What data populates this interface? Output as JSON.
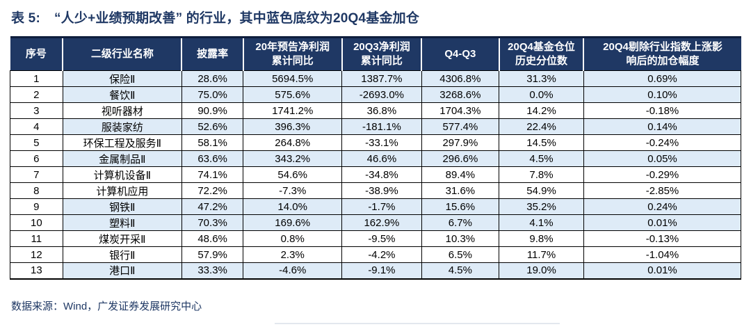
{
  "title": {
    "prefix": "表 5:",
    "text": "“人少+业绩预期改善” 的行业，其中蓝色底纹为20Q4基金加仓"
  },
  "colors": {
    "header_bg": "#1F3864",
    "header_text": "#FFFFFF",
    "highlight_row_bg": "#DEEBF7",
    "title_text": "#1F3864",
    "cell_border": "#000000"
  },
  "table": {
    "columns": [
      {
        "key": "index",
        "label": "序号",
        "width": 7.2
      },
      {
        "key": "name",
        "label": "二级行业名称",
        "width": 16.3
      },
      {
        "key": "disclosure",
        "label": "披露率",
        "width": 8.4
      },
      {
        "key": "profit20",
        "label": "20年预告净利润\n累计同比",
        "width": 13.5
      },
      {
        "key": "profit20q3",
        "label": "20Q3净利润\n累计同比",
        "width": 10.9
      },
      {
        "key": "q4q3",
        "label": "Q4-Q3",
        "width": 10.6
      },
      {
        "key": "fundpos",
        "label": "20Q4基金仓位\n历史分位数",
        "width": 11.6
      },
      {
        "key": "addrange",
        "label": "20Q4剔除行业指数上涨影\n响后的加仓幅度",
        "width": 21.5
      }
    ],
    "rows": [
      {
        "highlighted": true,
        "cells": [
          "1",
          "保险Ⅱ",
          "28.6%",
          "5694.5%",
          "1387.7%",
          "4306.8%",
          "31.3%",
          "0.69%"
        ]
      },
      {
        "highlighted": true,
        "cells": [
          "2",
          "餐饮Ⅱ",
          "75.0%",
          "575.6%",
          "-2693.0%",
          "3268.6%",
          "0.0%",
          "0.10%"
        ]
      },
      {
        "highlighted": false,
        "cells": [
          "3",
          "视听器材",
          "90.9%",
          "1741.2%",
          "36.8%",
          "1704.3%",
          "14.2%",
          "-0.18%"
        ]
      },
      {
        "highlighted": true,
        "cells": [
          "4",
          "服装家纺",
          "52.6%",
          "396.3%",
          "-181.1%",
          "577.4%",
          "22.4%",
          "0.14%"
        ]
      },
      {
        "highlighted": false,
        "cells": [
          "5",
          "环保工程及服务Ⅱ",
          "58.1%",
          "264.8%",
          "-33.1%",
          "297.9%",
          "14.5%",
          "-0.24%"
        ]
      },
      {
        "highlighted": true,
        "cells": [
          "6",
          "金属制品Ⅱ",
          "63.6%",
          "343.2%",
          "46.6%",
          "296.6%",
          "4.5%",
          "0.05%"
        ]
      },
      {
        "highlighted": false,
        "cells": [
          "7",
          "计算机设备Ⅱ",
          "74.1%",
          "54.6%",
          "-34.8%",
          "89.4%",
          "7.8%",
          "-0.29%"
        ]
      },
      {
        "highlighted": false,
        "cells": [
          "8",
          "计算机应用",
          "72.2%",
          "-7.3%",
          "-38.9%",
          "31.6%",
          "54.9%",
          "-2.85%"
        ]
      },
      {
        "highlighted": true,
        "cells": [
          "9",
          "钢铁Ⅱ",
          "47.2%",
          "14.0%",
          "-1.7%",
          "15.6%",
          "35.2%",
          "0.24%"
        ]
      },
      {
        "highlighted": true,
        "cells": [
          "10",
          "塑料Ⅱ",
          "70.3%",
          "169.6%",
          "162.9%",
          "6.7%",
          "4.1%",
          "0.01%"
        ]
      },
      {
        "highlighted": false,
        "cells": [
          "11",
          "煤炭开采Ⅱ",
          "48.6%",
          "0.8%",
          "-9.5%",
          "10.3%",
          "9.8%",
          "-0.13%"
        ]
      },
      {
        "highlighted": false,
        "cells": [
          "12",
          "银行Ⅱ",
          "57.9%",
          "2.3%",
          "-4.2%",
          "6.5%",
          "11.7%",
          "-1.04%"
        ]
      },
      {
        "highlighted": true,
        "cells": [
          "13",
          "港口Ⅱ",
          "33.3%",
          "-4.6%",
          "-9.1%",
          "4.5%",
          "19.0%",
          "0.01%"
        ]
      }
    ]
  },
  "footer": {
    "text": "数据来源：Wind，广发证券发展研究中心"
  }
}
